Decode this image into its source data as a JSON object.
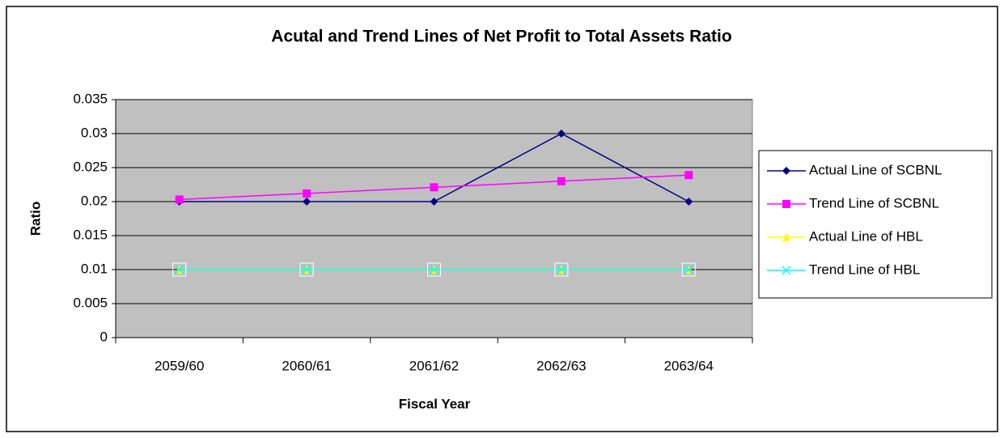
{
  "chart_data": {
    "type": "line",
    "title": "Acutal and Trend Lines of Net Profit to Total Assets Ratio",
    "x_label": "Fiscal Year",
    "y_label": "Ratio",
    "categories": [
      "2059/60",
      "2060/61",
      "2061/62",
      "2062/63",
      "2063/64"
    ],
    "series": [
      {
        "name": "Actual Line of SCBNL",
        "color": "#000080",
        "marker": "diamond",
        "values": [
          0.02,
          0.02,
          0.02,
          0.03,
          0.02
        ]
      },
      {
        "name": "Trend Line of SCBNL",
        "color": "#FF00FF",
        "marker": "square",
        "values": [
          0.0203,
          0.0212,
          0.0221,
          0.023,
          0.0239
        ]
      },
      {
        "name": "Actual Line of HBL",
        "color": "#FFFF00",
        "marker": "triangle",
        "values": [
          0.01,
          0.01,
          0.01,
          0.01,
          0.01
        ]
      },
      {
        "name": "Trend Line of HBL",
        "color": "#00FFFF",
        "marker": "cross",
        "values": [
          0.01,
          0.01,
          0.01,
          0.01,
          0.01
        ]
      }
    ],
    "ylim": [
      0,
      0.035
    ],
    "yticks": [
      0,
      0.005,
      0.01,
      0.015,
      0.02,
      0.025,
      0.03,
      0.035
    ],
    "grid": true,
    "plot_background": "#C0C0C0",
    "legend": "right"
  }
}
